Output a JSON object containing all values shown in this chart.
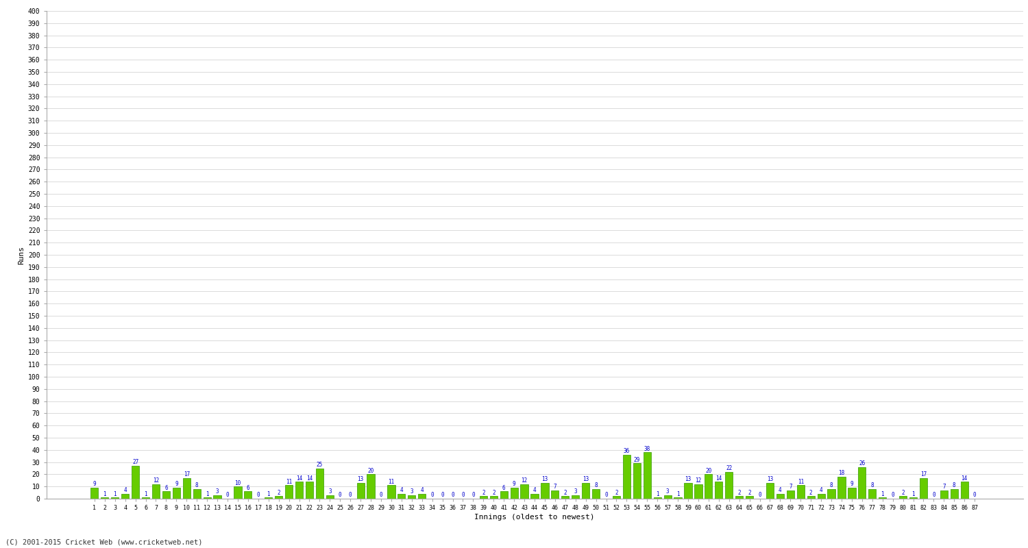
{
  "innings": [
    1,
    2,
    3,
    4,
    5,
    6,
    7,
    8,
    9,
    10,
    11,
    12,
    13,
    14,
    15,
    16,
    17,
    18,
    19,
    20,
    21,
    22,
    23,
    24,
    25,
    26,
    27,
    28,
    29,
    30,
    31,
    32,
    33,
    34,
    35,
    36,
    37,
    38,
    39,
    40,
    41,
    42,
    43,
    44,
    45,
    46,
    47,
    48,
    49,
    50,
    51,
    52,
    53,
    54,
    55,
    56,
    57,
    58,
    59,
    60,
    61,
    62,
    63,
    64,
    65,
    66,
    67,
    68,
    69,
    70,
    71,
    72,
    73,
    74,
    75,
    76,
    77,
    78,
    79,
    80,
    81,
    82,
    83,
    84,
    85,
    86,
    87
  ],
  "scores": [
    9,
    1,
    1,
    4,
    27,
    1,
    12,
    6,
    9,
    17,
    8,
    1,
    3,
    0,
    10,
    6,
    0,
    1,
    2,
    11,
    14,
    14,
    25,
    3,
    0,
    0,
    13,
    20,
    0,
    11,
    4,
    3,
    4,
    0,
    0,
    0,
    0,
    0,
    2,
    2,
    6,
    9,
    12,
    4,
    13,
    7,
    2,
    3,
    13,
    8,
    0,
    2,
    36,
    29,
    38,
    1,
    3,
    1,
    13,
    12,
    20,
    14,
    22,
    2,
    2,
    0,
    13,
    4,
    7,
    11,
    2,
    4,
    8,
    18,
    9,
    26,
    8,
    1,
    0,
    2,
    1,
    17,
    0,
    7,
    8,
    14,
    0
  ],
  "bar_color": "#66cc00",
  "bar_edge_color": "#339900",
  "label_color": "#0000cc",
  "ylabel": "Runs",
  "xlabel": "Innings (oldest to newest)",
  "footer": "(C) 2001-2015 Cricket Web (www.cricketweb.net)",
  "ylim_max": 400,
  "ytick_step": 10,
  "bg_color": "#ffffff",
  "grid_color": "#cccccc"
}
